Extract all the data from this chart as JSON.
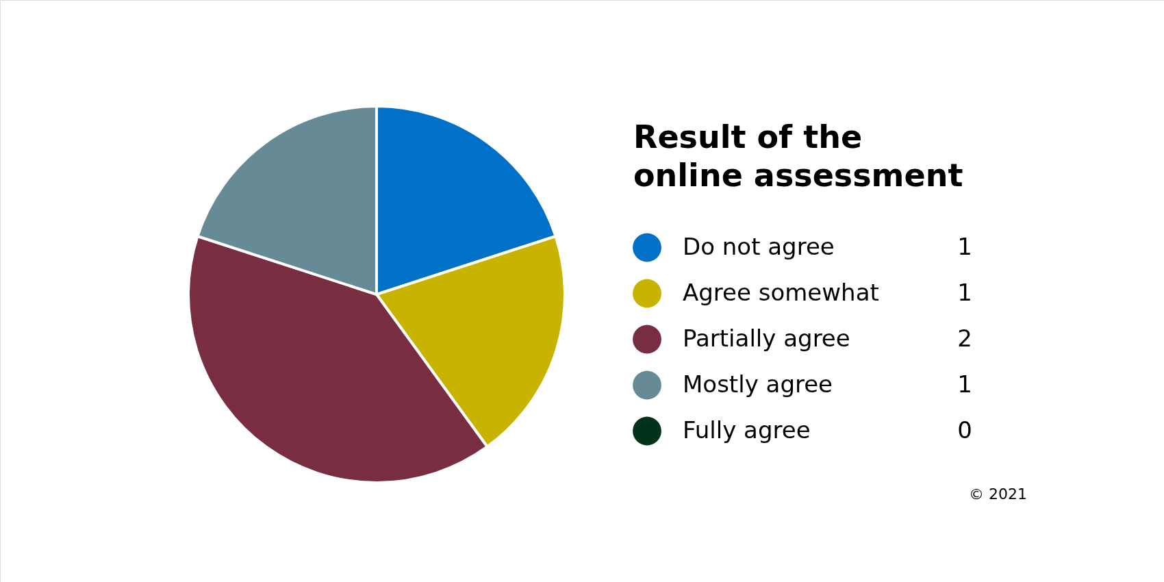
{
  "chart_data": {
    "type": "pie",
    "title": "Result of the\nonline assessment",
    "categories": [
      "Do not agree",
      "Agree somewhat",
      "Partially agree",
      "Mostly agree",
      "Fully agree"
    ],
    "values": [
      1,
      1,
      2,
      1,
      0
    ],
    "colors": [
      "#0070c8",
      "#c8b400",
      "#782d40",
      "#678b96",
      "#003319"
    ],
    "value_labels": [
      "1",
      "1",
      "2",
      "1",
      "0"
    ],
    "legend": "right",
    "annotations": [
      "© 2021"
    ]
  }
}
